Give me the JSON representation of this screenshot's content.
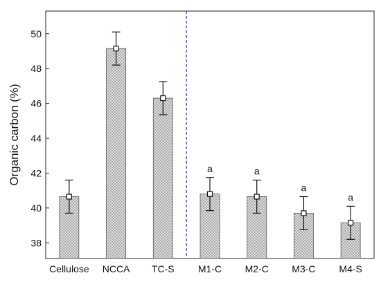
{
  "chart_data": {
    "type": "bar",
    "title": "",
    "xlabel": "",
    "ylabel": "Organic carbon (%)",
    "ylim": [
      37.1,
      51.3
    ],
    "yticks": [
      38,
      40,
      42,
      44,
      46,
      48,
      50
    ],
    "categories": [
      "Cellulose",
      "NCCA",
      "TC-S",
      "M1-C",
      "M2-C",
      "M3-C",
      "M4-S"
    ],
    "values": [
      40.65,
      49.15,
      46.3,
      40.8,
      40.65,
      39.7,
      39.15
    ],
    "errors": [
      0.95,
      0.95,
      0.95,
      0.95,
      0.95,
      0.95,
      0.95
    ],
    "annotations": [
      "",
      "",
      "",
      "a",
      "a",
      "a",
      "a"
    ],
    "separator_after_index": 2,
    "grid": false,
    "colors": {
      "bar_fill": "#d8d8d8",
      "bar_stroke": "#555555",
      "error_bar": "#111111",
      "separator": "#2a3fd6"
    }
  }
}
